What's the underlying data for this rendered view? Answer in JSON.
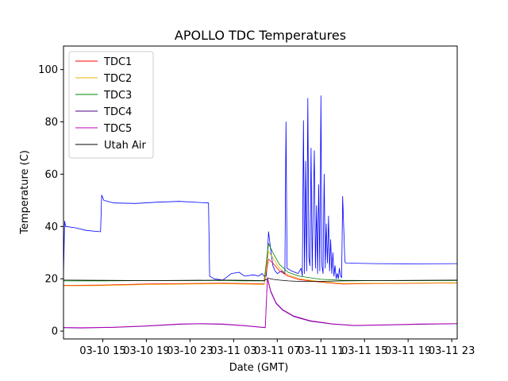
{
  "chart_data": {
    "type": "line",
    "title": "APOLLO TDC Temperatures",
    "xlabel": "Date (GMT)",
    "ylabel": "Temperature (C)",
    "x_unit": "hours since 03-10 00:00 GMT",
    "xlim": [
      11.4,
      47.5
    ],
    "ylim": [
      -3,
      109
    ],
    "x_ticks": [
      {
        "value": 15,
        "label": "03-10 15"
      },
      {
        "value": 19,
        "label": "03-10 19"
      },
      {
        "value": 23,
        "label": "03-10 23"
      },
      {
        "value": 27,
        "label": "03-11 03"
      },
      {
        "value": 31,
        "label": "03-11 07"
      },
      {
        "value": 35,
        "label": "03-11 11"
      },
      {
        "value": 39,
        "label": "03-11 15"
      },
      {
        "value": 43,
        "label": "03-11 19"
      },
      {
        "value": 47,
        "label": "03-11 23"
      }
    ],
    "y_ticks": [
      0,
      20,
      40,
      60,
      80,
      100
    ],
    "legend_position": "top-left",
    "series": [
      {
        "name": "TDC1",
        "color": "#ff0000",
        "x": [
          11.4,
          15,
          19,
          23,
          26,
          28,
          29.8,
          30.2,
          30.6,
          31.2,
          32,
          33,
          35,
          37,
          40,
          44,
          47.5
        ],
        "y": [
          17.5,
          17.6,
          18.0,
          18.2,
          18.3,
          18.2,
          18.0,
          27.5,
          26.0,
          23.0,
          21.0,
          19.7,
          18.7,
          18.0,
          18.2,
          18.3,
          18.4
        ]
      },
      {
        "name": "TDC2",
        "color": "#e6b400",
        "x": [
          11.4,
          15,
          19,
          23,
          26,
          28,
          29.8,
          30.2,
          30.6,
          31.2,
          32,
          33,
          35,
          37,
          40,
          44,
          47.5
        ],
        "y": [
          17.3,
          17.4,
          17.8,
          18.0,
          18.1,
          18.0,
          17.8,
          30.5,
          28.0,
          24.0,
          21.5,
          20.0,
          18.9,
          18.2,
          18.3,
          18.4,
          18.5
        ]
      },
      {
        "name": "TDC3",
        "color": "#008000",
        "x": [
          11.4,
          15,
          19,
          23,
          26,
          28,
          29.8,
          30.2,
          30.6,
          31.2,
          32,
          33,
          35,
          37,
          40,
          44,
          47.5
        ],
        "y": [
          19.2,
          19.2,
          19.3,
          19.3,
          19.3,
          19.2,
          19.2,
          33.5,
          30.0,
          25.5,
          22.5,
          21.0,
          19.8,
          19.4,
          19.3,
          19.3,
          19.3
        ]
      },
      {
        "name": "TDC4",
        "color": "#4b0082",
        "x": [
          11.4,
          13,
          16,
          19,
          22,
          24,
          26,
          28,
          29.9,
          30.1,
          30.4,
          30.9,
          31.5,
          32.5,
          34,
          36,
          38,
          41,
          44,
          47.5
        ],
        "y": [
          1.3,
          1.2,
          1.4,
          1.9,
          2.6,
          2.8,
          2.6,
          2.0,
          1.3,
          20.0,
          15.0,
          10.5,
          8.0,
          5.6,
          3.8,
          2.7,
          2.1,
          2.3,
          2.6,
          2.8
        ]
      },
      {
        "name": "TDC5",
        "color": "#c000c0",
        "x": [
          11.4,
          13,
          16,
          19,
          22,
          24,
          26,
          28,
          29.9,
          30.1,
          30.4,
          30.9,
          31.5,
          32.5,
          34,
          36,
          38,
          41,
          44,
          47.5
        ],
        "y": [
          1.4,
          1.3,
          1.5,
          2.0,
          2.7,
          2.9,
          2.7,
          2.1,
          1.4,
          20.5,
          15.4,
          10.8,
          8.2,
          5.8,
          4.0,
          2.8,
          2.2,
          2.4,
          2.7,
          2.9
        ]
      },
      {
        "name": "Utah Air",
        "color": "#000000",
        "x": [
          11.4,
          15,
          19,
          23,
          26,
          28,
          29.8,
          30.2,
          30.6,
          31.2,
          32,
          33,
          35,
          37,
          40,
          44,
          47.5
        ],
        "y": [
          19.5,
          19.4,
          19.3,
          19.4,
          19.5,
          19.4,
          19.3,
          20.2,
          19.8,
          19.5,
          19.2,
          19.0,
          19.0,
          19.2,
          19.3,
          19.4,
          19.5
        ]
      },
      {
        "name": "blue",
        "color": "#0000ff",
        "show_in_legend": false,
        "x": [
          11.4,
          11.5,
          11.6,
          12.5,
          13.5,
          14.7,
          14.8,
          14.9,
          15.1,
          16,
          18,
          20,
          22,
          24.7,
          24.8,
          25.2,
          26,
          26.8,
          27.5,
          28,
          28.8,
          29.3,
          29.6,
          29.8,
          30.0,
          30.2,
          30.4,
          30.6,
          30.8,
          31.0,
          31.4,
          31.7,
          31.8,
          31.9,
          32.3,
          32.9,
          33.2,
          33.3,
          33.4,
          33.5,
          33.6,
          33.7,
          33.8,
          33.9,
          34.0,
          34.1,
          34.2,
          34.3,
          34.4,
          34.5,
          34.6,
          34.7,
          34.8,
          34.9,
          35.0,
          35.1,
          35.2,
          35.3,
          35.4,
          35.5,
          35.6,
          35.7,
          35.8,
          35.9,
          36.0,
          36.1,
          36.2,
          36.3,
          36.4,
          36.5,
          36.6,
          36.7,
          36.8,
          36.9,
          37.0,
          37.2,
          37.3,
          40,
          44,
          47.5
        ],
        "y": [
          21,
          42,
          40,
          39.5,
          38.5,
          38,
          38,
          52,
          50,
          49,
          48.8,
          49.3,
          49.6,
          49,
          21,
          20,
          19.5,
          22,
          22.5,
          21,
          21.5,
          21,
          22,
          21,
          21,
          38,
          31,
          25,
          23,
          22,
          23,
          22,
          80,
          24,
          23,
          22,
          24,
          21,
          80.5,
          22,
          65,
          23,
          89,
          28,
          25,
          70,
          23,
          47,
          69,
          24,
          48,
          22,
          56,
          23,
          90,
          25,
          22,
          60,
          24,
          41,
          26,
          44,
          23,
          35,
          22,
          30,
          21,
          25,
          20,
          22,
          20,
          24,
          21,
          20.5,
          51.5,
          26.5,
          26,
          25.8,
          25.7,
          25.8
        ]
      }
    ]
  }
}
